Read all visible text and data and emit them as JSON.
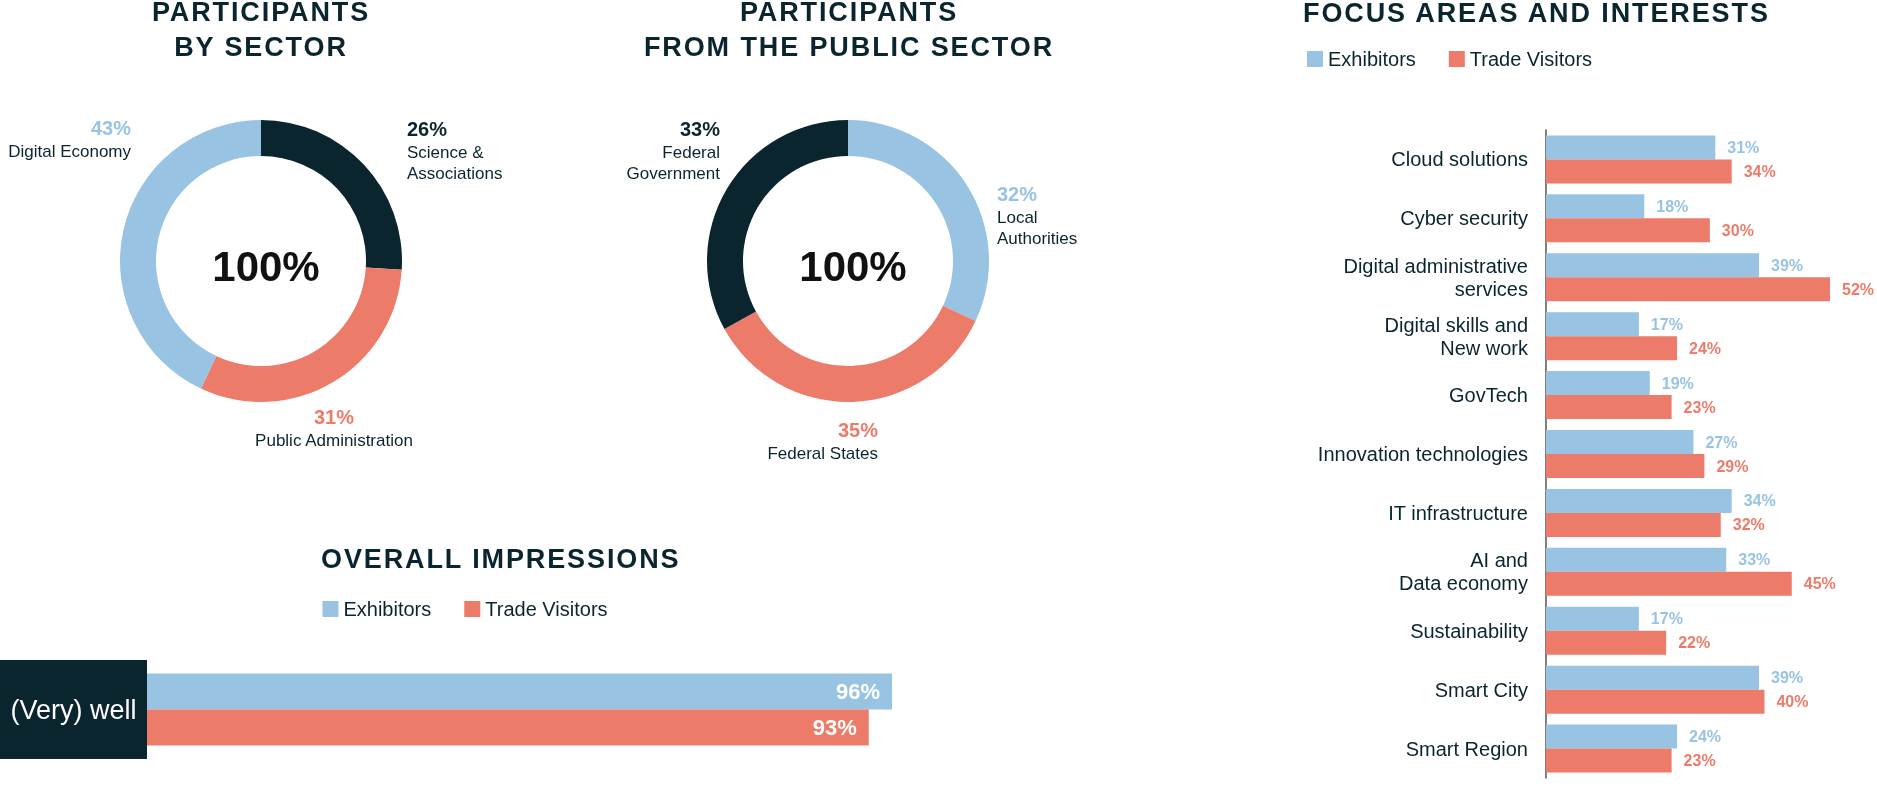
{
  "chart_data": [
    {
      "type": "donut",
      "title": "PARTICIPANTS\nBY SECTOR",
      "categories": [
        "Science &\nAssociations",
        "Public Administration",
        "Digital Economy"
      ],
      "values": [
        26,
        31,
        43
      ],
      "colors": [
        "#0a252e",
        "#ed7b6a",
        "#98c3e3"
      ],
      "value_labels": [
        "26%",
        "31%",
        "43%"
      ],
      "annotations": [
        "100%"
      ]
    },
    {
      "type": "donut",
      "title": "PARTICIPANTS\nFROM THE PUBLIC SECTOR",
      "categories": [
        "Local\nAuthorities",
        "Federal States",
        "Federal\nGovernment"
      ],
      "values": [
        32,
        35,
        33
      ],
      "colors": [
        "#98c3e3",
        "#ed7b6a",
        "#0a252e"
      ],
      "value_labels": [
        "32%",
        "35%",
        "33%"
      ],
      "annotations": [
        "100%"
      ]
    },
    {
      "type": "bar",
      "orientation": "horizontal",
      "title": "FOCUS AREAS AND INTERESTS",
      "categories": [
        "Cloud solutions",
        "Cyber security",
        "Digital administrative\nservices",
        "Digital skills and\nNew work",
        "GovTech",
        "Innovation technologies",
        "IT infrastructure",
        "AI and\nData economy",
        "Sustainability",
        "Smart City",
        "Smart Region"
      ],
      "series": [
        {
          "name": "Exhibitors",
          "color": "#98c3e3",
          "values": [
            31,
            18,
            39,
            17,
            19,
            27,
            34,
            33,
            17,
            39,
            24
          ],
          "value_labels": [
            "31%",
            "18%",
            "39%",
            "17%",
            "19%",
            "27%",
            "34%",
            "33%",
            "17%",
            "39%",
            "24%"
          ]
        },
        {
          "name": "Trade Visitors",
          "color": "#ed7b6a",
          "values": [
            34,
            30,
            52,
            24,
            23,
            29,
            32,
            45,
            22,
            40,
            23
          ],
          "value_labels": [
            "34%",
            "30%",
            "52%",
            "24%",
            "23%",
            "29%",
            "32%",
            "45%",
            "22%",
            "40%",
            "23%"
          ]
        }
      ],
      "legend": "top left",
      "tick_labels": "y"
    },
    {
      "type": "bar",
      "orientation": "horizontal",
      "title": "OVERALL IMPRESSIONS",
      "categories": [
        "(Very) well"
      ],
      "series": [
        {
          "name": "Exhibitors",
          "color": "#98c3e3",
          "values": [
            96
          ],
          "value_labels": [
            "96%"
          ]
        },
        {
          "name": "Trade Visitors",
          "color": "#ed7b6a",
          "values": [
            93
          ],
          "value_labels": [
            "93%"
          ]
        }
      ],
      "legend": "top",
      "tick_labels": "y"
    }
  ]
}
